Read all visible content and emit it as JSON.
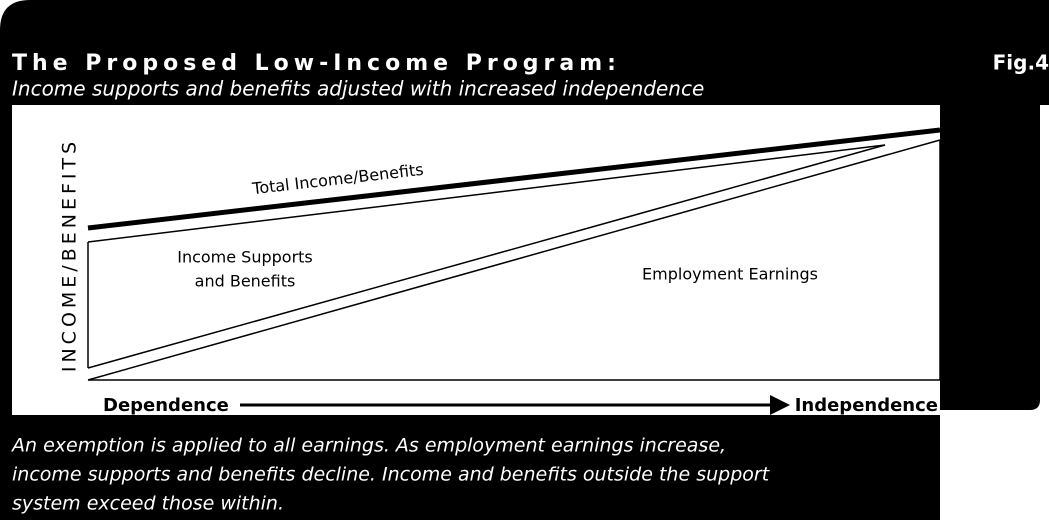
{
  "header": {
    "title": "The Proposed Low-Income Program:",
    "subtitle": "Income supports and benefits adjusted with increased independence",
    "figure": "Fig.4"
  },
  "diagram": {
    "y_label": "INCOME/BENEFITS",
    "total_label": "Total Income/Benefits",
    "supports_label": [
      "Income Supports",
      "and Benefits"
    ],
    "earnings_label": "Employment Earnings",
    "x_start": "Dependence",
    "x_end": "Independence"
  },
  "caption": [
    "An exemption is applied to all earnings. As employment earnings increase,",
    "income supports and benefits decline. Income and benefits outside the support",
    "system exceed those within."
  ]
}
